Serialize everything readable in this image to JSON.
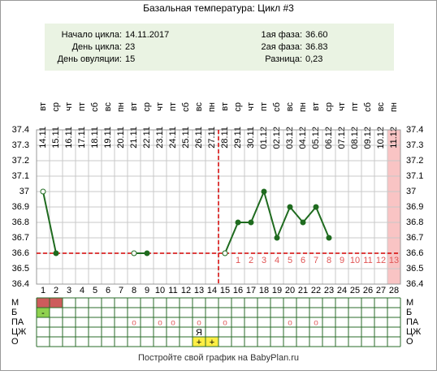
{
  "chart_data": {
    "type": "line",
    "title": "Базальная температура: Цикл #3",
    "info": {
      "left": [
        {
          "label": "Начало цикла:",
          "value": "14.11.2017"
        },
        {
          "label": "День цикла:",
          "value": "23"
        },
        {
          "label": "День овуляции:",
          "value": "15"
        }
      ],
      "right": [
        {
          "label": "1ая фаза:",
          "value": "36.60"
        },
        {
          "label": "2ая фаза:",
          "value": "36.83"
        },
        {
          "label": "Разница:",
          "value": "0,23"
        }
      ]
    },
    "dates": [
      "14.11",
      "15.11",
      "16.11",
      "17.11",
      "18.11",
      "19.11",
      "20.11",
      "21.11",
      "22.11",
      "23.11",
      "24.11",
      "25.11",
      "26.11",
      "27.11",
      "28.11",
      "29.11",
      "30.11",
      "01.12",
      "02.12",
      "03.12",
      "04.12",
      "05.12",
      "06.12",
      "07.12",
      "08.12",
      "09.12",
      "10.12",
      "11.12"
    ],
    "weekdays": [
      "вт",
      "ср",
      "чт",
      "пт",
      "сб",
      "вс",
      "пн",
      "вт",
      "ср",
      "чт",
      "пт",
      "сб",
      "вс",
      "пн",
      "вт",
      "ср",
      "чт",
      "пт",
      "сб",
      "вс",
      "пн",
      "вт",
      "ср",
      "чт",
      "пт",
      "сб",
      "вс",
      "пн"
    ],
    "x": [
      1,
      2,
      3,
      4,
      5,
      6,
      7,
      8,
      9,
      10,
      11,
      12,
      13,
      14,
      15,
      16,
      17,
      18,
      19,
      20,
      21,
      22,
      23,
      24,
      25,
      26,
      27,
      28
    ],
    "series": [
      {
        "name": "Температура",
        "color": "#1f6b1f",
        "values": [
          37.0,
          36.6,
          null,
          null,
          null,
          null,
          null,
          36.6,
          36.6,
          null,
          null,
          null,
          null,
          null,
          36.6,
          36.8,
          36.8,
          37.0,
          36.7,
          36.9,
          36.8,
          36.9,
          36.7,
          null,
          null,
          null,
          null,
          null
        ]
      }
    ],
    "open_days": [
      1,
      8,
      15
    ],
    "ylim": [
      36.4,
      37.4
    ],
    "yticks": [
      36.4,
      36.5,
      36.6,
      36.7,
      36.8,
      36.9,
      37.0,
      37.1,
      37.2,
      37.3,
      37.4
    ],
    "grid": true,
    "cover_line": 36.6,
    "ovulation_day": 15,
    "phase_days": [
      1,
      2,
      3,
      4,
      5,
      6,
      7,
      8,
      9,
      10,
      11,
      12,
      13
    ],
    "highlight_day": 28,
    "rows": [
      {
        "label": "М",
        "color": "#cd5c5c",
        "marks": [
          {
            "day": 1
          },
          {
            "day": 2
          }
        ]
      },
      {
        "label": "Б",
        "color": "#8fd14f",
        "marks": [
          {
            "day": 1,
            "text": "-"
          }
        ]
      },
      {
        "label": "ПА",
        "color": "#e06060",
        "marks": [
          {
            "day": 8,
            "text": "o"
          },
          {
            "day": 10,
            "text": "o"
          },
          {
            "day": 11,
            "text": "o"
          },
          {
            "day": 13,
            "text": "o"
          },
          {
            "day": 15,
            "text": "o"
          },
          {
            "day": 20,
            "text": "o"
          },
          {
            "day": 22,
            "text": "o"
          }
        ]
      },
      {
        "label": "ЦЖ",
        "color": "#000000",
        "marks": [
          {
            "day": 13,
            "text": "Я"
          }
        ]
      },
      {
        "label": "О",
        "color": "#ffee44",
        "marks": [
          {
            "day": 13,
            "text": "+"
          },
          {
            "day": 14,
            "text": "+"
          }
        ]
      }
    ],
    "footer": "Постройте свой график на BabyPlan.ru"
  }
}
